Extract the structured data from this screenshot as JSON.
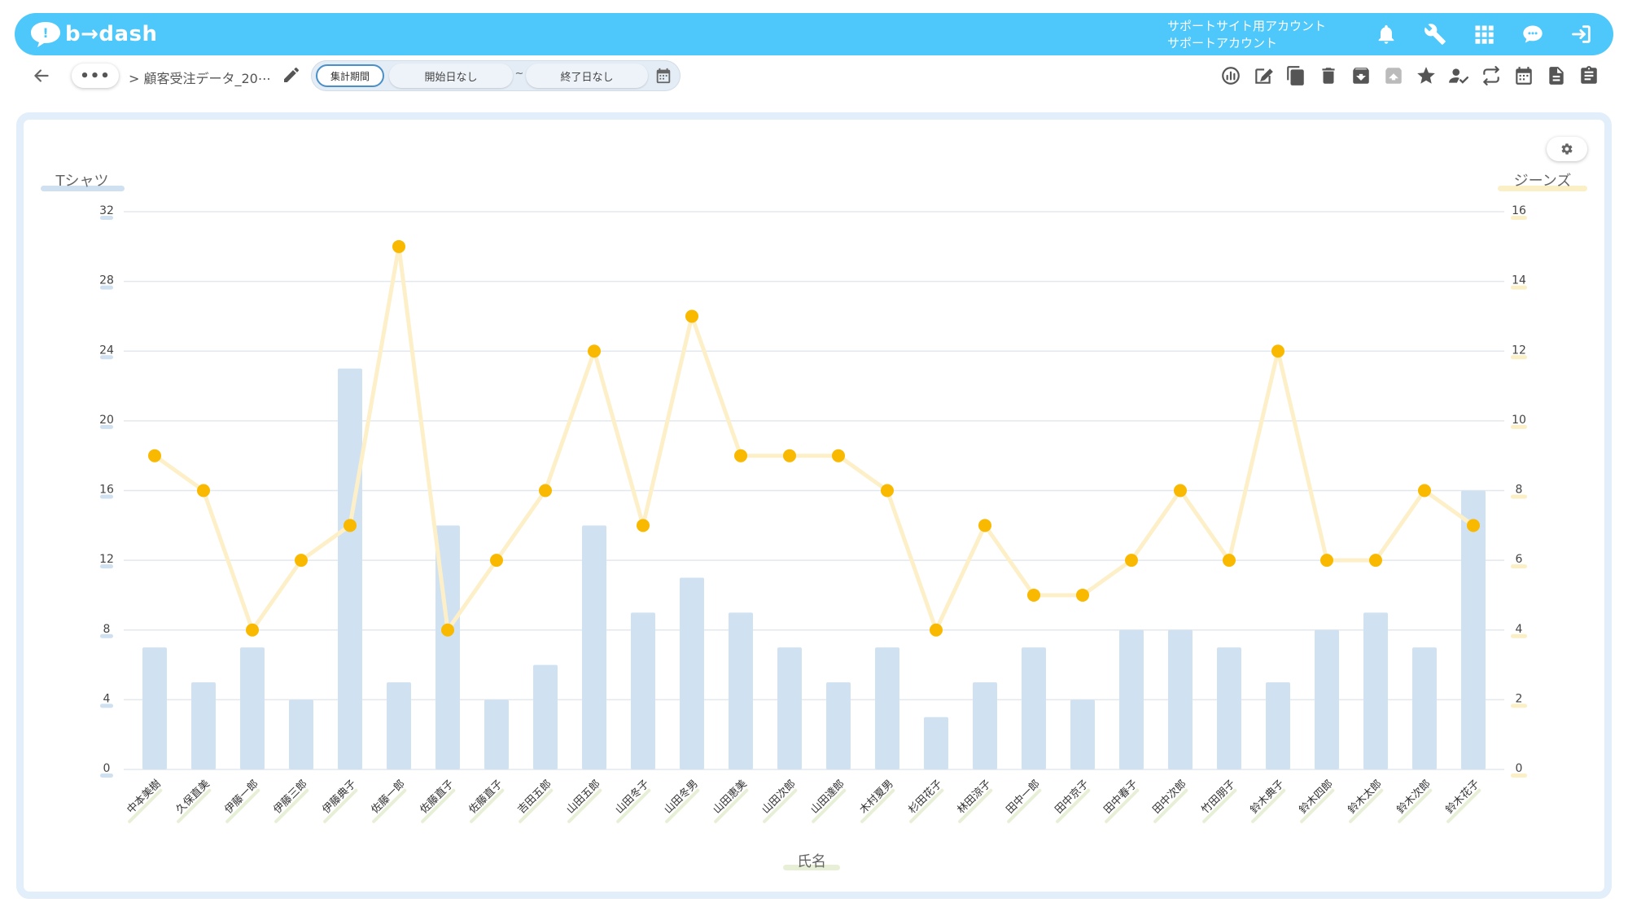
{
  "header": {
    "logo_text": "b→dash",
    "account_line1": "サポートサイト用アカウント",
    "account_line2": "サポートアカウント",
    "icons": [
      "bell-icon",
      "wrench-icon",
      "apps-grid-icon",
      "support-chat-icon",
      "logout-icon"
    ]
  },
  "toolbar": {
    "more_label": "•••",
    "breadcrumb": "> 顧客受注データ_20⋯",
    "period_label": "集計期間",
    "start_date": "開始日なし",
    "tilde": "~",
    "end_date": "終了日なし",
    "right_icons": [
      "chart-settings-icon",
      "edit-note-icon",
      "copy-icon",
      "trash-icon",
      "archive-icon",
      "unarchive-icon",
      "star-icon",
      "user-check-icon",
      "sync-icon",
      "calendar-icon",
      "document-icon",
      "clipboard-icon"
    ]
  },
  "colors": {
    "header_bg": "#4ec8fa",
    "bar": "#d0e2f2",
    "line": "#fdf0c8",
    "point": "#f9b900",
    "left_axis_underline": "#cfe0f1",
    "right_axis_underline": "#fbefc6",
    "x_axis_underline": "#e7f0d6"
  },
  "chart_data": {
    "type": "bar",
    "categories": [
      "中本美樹",
      "久保直美",
      "伊藤一郎",
      "伊藤三郎",
      "伊藤典子",
      "佐藤一郎",
      "佐藤直子",
      "佐藤直子",
      "吉田五郎",
      "山田五郎",
      "山田冬子",
      "山田冬男",
      "山田恵美",
      "山田次郎",
      "山田達郎",
      "木村夏男",
      "杉田花子",
      "林田涼子",
      "田中一郎",
      "田中京子",
      "田中春子",
      "田中次郎",
      "竹田朋子",
      "鈴木典子",
      "鈴木四郎",
      "鈴木太郎",
      "鈴木次郎",
      "鈴木花子"
    ],
    "series": [
      {
        "name": "Tシャツ",
        "type": "bar",
        "axis": "left",
        "values": [
          7,
          5,
          7,
          4,
          23,
          5,
          14,
          4,
          6,
          14,
          9,
          11,
          9,
          7,
          5,
          7,
          3,
          5,
          7,
          4,
          8,
          8,
          7,
          5,
          8,
          9,
          7,
          16
        ]
      },
      {
        "name": "ジーンズ",
        "type": "line",
        "axis": "right",
        "values": [
          9,
          8,
          4,
          6,
          7,
          15,
          4,
          6,
          8,
          12,
          7,
          13,
          9,
          9,
          9,
          8,
          4,
          7,
          5,
          5,
          6,
          8,
          6,
          12,
          6,
          6,
          8,
          7
        ]
      }
    ],
    "ylabel": "Tシャツ",
    "y2label": "ジーンズ",
    "xlabel": "氏名",
    "ylim": [
      0,
      32
    ],
    "y2lim": [
      0,
      16
    ],
    "yticks": [
      "0",
      "4",
      "8",
      "12",
      "16",
      "20",
      "24",
      "28",
      "32"
    ],
    "y2ticks": [
      "0",
      "2",
      "4",
      "6",
      "8",
      "10",
      "12",
      "14",
      "16"
    ],
    "grid": true
  }
}
